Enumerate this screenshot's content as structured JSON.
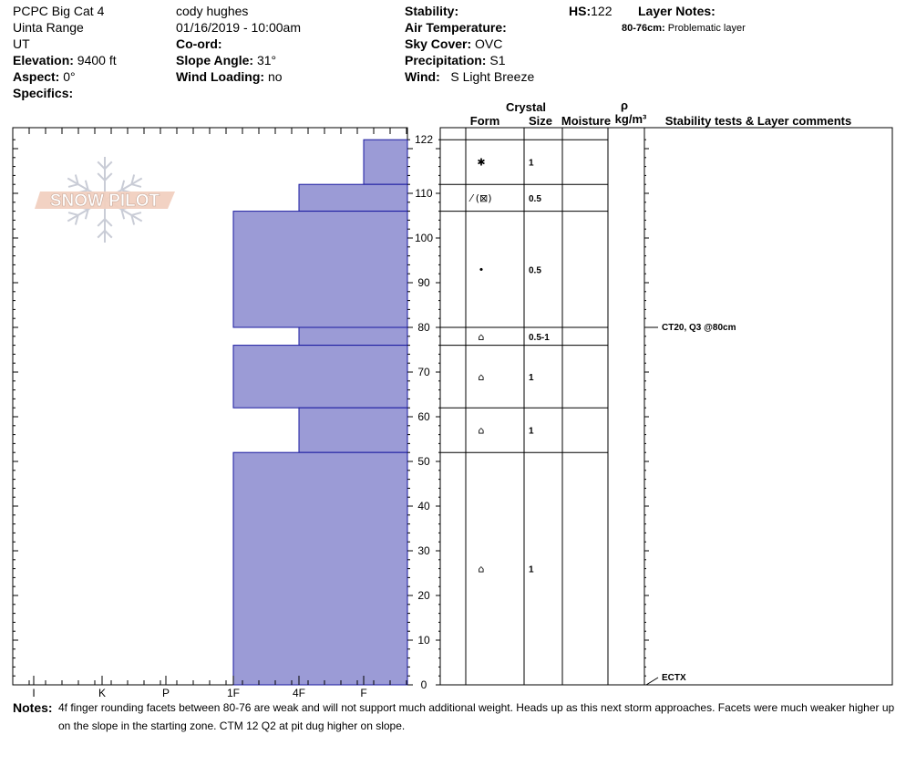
{
  "header": {
    "site": "PCPC Big Cat 4",
    "range": "Uinta Range",
    "state": "UT",
    "elevation_label": "Elevation:",
    "elevation": "9400 ft",
    "aspect_label": "Aspect:",
    "aspect": "0°",
    "specifics_label": "Specifics:",
    "observer": "cody hughes",
    "datetime": "01/16/2019 - 10:00am",
    "coord_label": "Co-ord:",
    "slope_label": "Slope Angle:",
    "slope": "31°",
    "wind_loading_label": "Wind Loading:",
    "wind_loading": "no",
    "stability_label": "Stability:",
    "air_temp_label": "Air Temperature:",
    "sky_label": "Sky Cover:",
    "sky": "OVC",
    "precip_label": "Precipitation:",
    "precip": "S1",
    "wind_label": "Wind:",
    "wind": "S Light Breeze",
    "hs_label": "HS:",
    "hs": "122",
    "layer_notes_label": "Layer Notes:",
    "layer_note_range": "80-76cm:",
    "layer_note_text": "Problematic layer"
  },
  "logo_text": "SNOW PILOT",
  "columns": {
    "crystal": "Crystal",
    "form": "Form",
    "size": "Size",
    "moisture": "Moisture",
    "rho": "ρ",
    "density_unit": "kg/m³",
    "stability": "Stability tests & Layer comments"
  },
  "notes": {
    "label": "Notes:",
    "text": "4f finger rounding facets between 80-76 are weak and will not support much additional weight. Heads up as this next storm approaches. Facets were much weaker higher up on the slope in the starting zone. CTM 12 Q2 at pit dug higher on slope."
  },
  "chart_data": {
    "type": "snow_profile",
    "height_axis": {
      "min": 0,
      "max": 122,
      "unit": "cm",
      "ticks": [
        0,
        10,
        20,
        30,
        40,
        50,
        60,
        70,
        80,
        90,
        100,
        110,
        122
      ]
    },
    "hardness_axis": {
      "ticks": [
        "I",
        "K",
        "P",
        "1F",
        "4F",
        "F"
      ]
    },
    "colors": {
      "fill": "#9b9bd6",
      "stroke": "#1a1aa0"
    },
    "layers": [
      {
        "top": 122,
        "bottom": 112,
        "hardness": "F",
        "form": "✱",
        "size": "1"
      },
      {
        "top": 112,
        "bottom": 106,
        "hardness": "4F",
        "form": "⁄ (⊠)",
        "size": "0.5"
      },
      {
        "top": 106,
        "bottom": 80,
        "hardness": "1F",
        "form": "•",
        "size": "0.5"
      },
      {
        "top": 80,
        "bottom": 76,
        "hardness": "4F",
        "form": "⌂",
        "size": "0.5-1"
      },
      {
        "top": 76,
        "bottom": 62,
        "hardness": "1F",
        "form": "⌂",
        "size": "1"
      },
      {
        "top": 62,
        "bottom": 52,
        "hardness": "4F",
        "form": "⌂",
        "size": "1"
      },
      {
        "top": 52,
        "bottom": 0,
        "hardness": "1F",
        "form": "⌂",
        "size": "1"
      }
    ],
    "tests": [
      {
        "height": 80,
        "text": "CT20, Q3 @80cm"
      },
      {
        "height": 0,
        "text": "ECTX"
      }
    ]
  }
}
